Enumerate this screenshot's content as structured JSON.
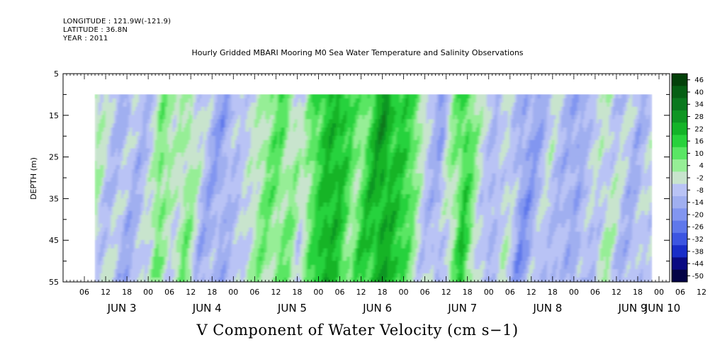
{
  "header": {
    "longitude": "LONGITUDE : 121.9W(-121.9)",
    "latitude": "LATITUDE : 36.8N",
    "year": "YEAR : 2011"
  },
  "chart_data": {
    "type": "heatmap",
    "title": "Hourly Gridded MBARI Mooring M0 Sea Water Temperature and Salinity Observations",
    "xlabel": "V Component of Water Velocity (cm s−1)",
    "ylabel": "DEPTH (m)",
    "y_range": [
      5,
      55
    ],
    "y_reversed": true,
    "y_ticks": [
      "5",
      "15",
      "25",
      "35",
      "45",
      "55"
    ],
    "x_range_hours": [
      0,
      171
    ],
    "data_start": "JUN 3 09:00",
    "data_top_depth": 10,
    "x_hour_labels": [
      "06",
      "12",
      "18",
      "00",
      "06",
      "12",
      "18",
      "00",
      "06",
      "12",
      "18",
      "00",
      "06",
      "12",
      "18",
      "00",
      "06",
      "12",
      "18",
      "00",
      "06",
      "12",
      "18",
      "00",
      "06",
      "12",
      "18",
      "00",
      "06",
      "12",
      "18",
      "00"
    ],
    "x_day_labels": [
      "JUN  3",
      "JUN  4",
      "JUN  5",
      "JUN  6",
      "JUN  7",
      "JUN  8",
      "JUN  9",
      "JUN 10"
    ],
    "colorbar": {
      "labels": [
        "46",
        "40",
        "34",
        "28",
        "22",
        "16",
        "10",
        "4",
        "-2",
        "-8",
        "-14",
        "-20",
        "-26",
        "-32",
        "-38",
        "-44",
        "-50"
      ],
      "min": -50,
      "max": 46,
      "step": 6
    },
    "grid": false,
    "legend": "right"
  }
}
